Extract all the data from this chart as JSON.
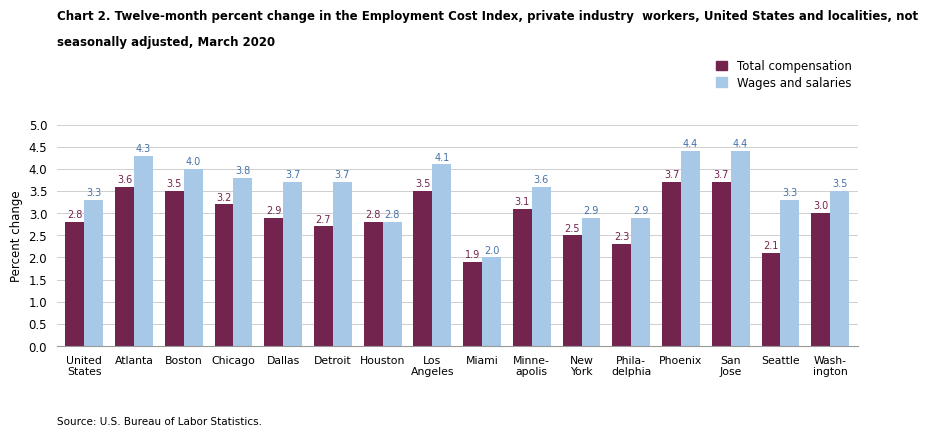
{
  "title_line1": "Chart 2. Twelve-month percent change in the Employment Cost Index, private industry  workers, United States and localities, not",
  "title_line2": "seasonally adjusted, March 2020",
  "ylabel": "Percent change",
  "source": "Source: U.S. Bureau of Labor Statistics.",
  "categories": [
    "United\nStates",
    "Atlanta",
    "Boston",
    "Chicago",
    "Dallas",
    "Detroit",
    "Houston",
    "Los\nAngeles",
    "Miami",
    "Minne-\napolis",
    "New\nYork",
    "Phila-\ndelphia",
    "Phoenix",
    "San\nJose",
    "Seattle",
    "Wash-\nington"
  ],
  "total_compensation": [
    2.8,
    3.6,
    3.5,
    3.2,
    2.9,
    2.7,
    2.8,
    3.5,
    1.9,
    3.1,
    2.5,
    2.3,
    3.7,
    3.7,
    2.1,
    3.0
  ],
  "wages_and_salaries": [
    3.3,
    4.3,
    4.0,
    3.8,
    3.7,
    3.7,
    2.8,
    4.1,
    2.0,
    3.6,
    2.9,
    2.9,
    4.4,
    4.4,
    3.3,
    3.5
  ],
  "color_total": "#72244E",
  "color_wages": "#A8C8E8",
  "ylim": [
    0,
    5.0
  ],
  "yticks": [
    0.0,
    0.5,
    1.0,
    1.5,
    2.0,
    2.5,
    3.0,
    3.5,
    4.0,
    4.5,
    5.0
  ],
  "legend_total": "Total compensation",
  "legend_wages": "Wages and salaries",
  "bar_width": 0.38,
  "label_color_total": "#72244E",
  "label_color_wages": "#4472A8"
}
